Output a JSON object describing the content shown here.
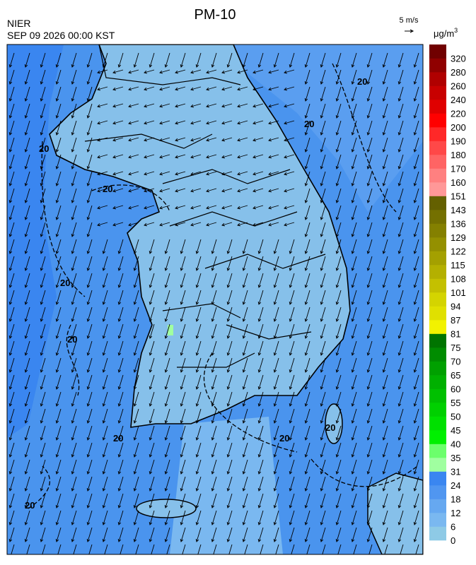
{
  "header": {
    "title": "PM-10",
    "agency": "NIER",
    "datetime": "SEP 09 2026 00:00 KST",
    "wind_scale": "5 m/s"
  },
  "map": {
    "contour_label": "20"
  },
  "legend": {
    "unit_base": "μg/m",
    "unit_exp": "3",
    "labels": [
      0,
      6,
      12,
      18,
      24,
      31,
      35,
      40,
      45,
      50,
      55,
      60,
      65,
      70,
      75,
      81,
      87,
      94,
      101,
      108,
      115,
      122,
      129,
      136,
      143,
      151,
      160,
      170,
      180,
      190,
      200,
      220,
      240,
      260,
      280,
      320
    ],
    "colors": [
      "#8ecae6",
      "#7ab8f0",
      "#66a8f0",
      "#5096f0",
      "#3a86f0",
      "#a0ffa0",
      "#6cff6c",
      "#00f000",
      "#00e000",
      "#00d000",
      "#00c000",
      "#00b000",
      "#00a000",
      "#008c00",
      "#007400",
      "#f2f200",
      "#e0e000",
      "#d4d400",
      "#c4c000",
      "#b4b000",
      "#a4a000",
      "#949000",
      "#848000",
      "#747000",
      "#646000",
      "#ff9898",
      "#ff8080",
      "#ff6464",
      "#ff4848",
      "#ff2828",
      "#ff0000",
      "#e00000",
      "#c80000",
      "#b00000",
      "#900000",
      "#700000"
    ]
  }
}
